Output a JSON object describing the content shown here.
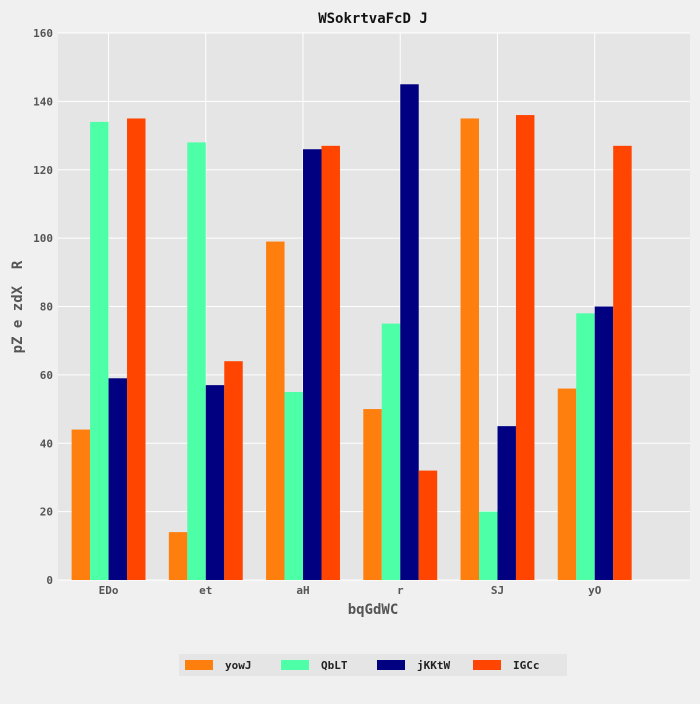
{
  "chart_data": {
    "type": "bar",
    "title": "WSokrtvaFcD J",
    "xlabel": "bqGdWC",
    "ylabel": "pZ e zdX  R",
    "categories": [
      "EDo",
      "et",
      "aH",
      "r",
      "SJ",
      "yO"
    ],
    "ylim": [
      0,
      160
    ],
    "yticks": [
      0,
      20,
      40,
      60,
      80,
      100,
      120,
      140,
      160
    ],
    "grid": true,
    "legend_position": "bottom",
    "series": [
      {
        "name": "yowJ",
        "color": "#ff7f0e",
        "values": [
          44,
          14,
          99,
          50,
          135,
          56
        ]
      },
      {
        "name": "QbLT",
        "color": "#4dffa6",
        "values": [
          134,
          128,
          55,
          75,
          20,
          78
        ]
      },
      {
        "name": "jKKtW",
        "color": "#000080",
        "values": [
          59,
          57,
          126,
          145,
          45,
          80
        ]
      },
      {
        "name": "IGCc",
        "color": "#ff4500",
        "values": [
          135,
          64,
          127,
          32,
          136,
          127
        ]
      }
    ],
    "colors": {
      "page_background": "#f0f0f0",
      "plot_background": "#e5e5e5",
      "grid": "#ffffff"
    }
  }
}
